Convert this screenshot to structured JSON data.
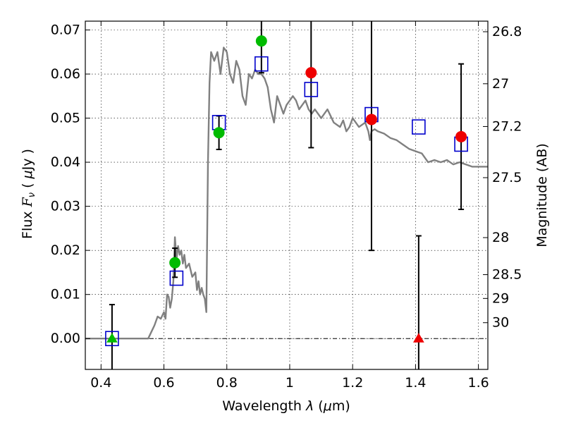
{
  "chart_data": {
    "type": "scatter",
    "xlabel": "Wavelength  λ (μm)",
    "ylabel": "Flux  F_ν  ( μJy )",
    "y2label": "Magnitude (AB)",
    "xlim": [
      0.35,
      1.63
    ],
    "ylim": [
      -0.007,
      0.072
    ],
    "xticks": [
      {
        "value": 0.4,
        "label": "0.4"
      },
      {
        "value": 0.6,
        "label": "0.6"
      },
      {
        "value": 0.8,
        "label": "0.8"
      },
      {
        "value": 1.0,
        "label": "1"
      },
      {
        "value": 1.2,
        "label": "1.2"
      },
      {
        "value": 1.4,
        "label": "1.4"
      },
      {
        "value": 1.6,
        "label": "1.6"
      }
    ],
    "yticks": [
      {
        "value": 0.0,
        "label": "0.00"
      },
      {
        "value": 0.01,
        "label": "0.01"
      },
      {
        "value": 0.02,
        "label": "0.02"
      },
      {
        "value": 0.03,
        "label": "0.03"
      },
      {
        "value": 0.04,
        "label": "0.04"
      },
      {
        "value": 0.05,
        "label": "0.05"
      },
      {
        "value": 0.06,
        "label": "0.06"
      },
      {
        "value": 0.07,
        "label": "0.07"
      }
    ],
    "mag_ticks": [
      {
        "label": "26.8",
        "flux": 0.0696
      },
      {
        "label": "27",
        "flux": 0.0578
      },
      {
        "label": "27.2",
        "flux": 0.0481
      },
      {
        "label": "27.5",
        "flux": 0.0365
      },
      {
        "label": "28",
        "flux": 0.0229
      },
      {
        "label": "28.5",
        "flux": 0.0145
      },
      {
        "label": "29",
        "flux": 0.0091
      },
      {
        "label": "30",
        "flux": 0.0036
      }
    ],
    "grid": true,
    "series": [
      {
        "kind": "line",
        "color": "#808080",
        "x": [
          0.35,
          0.45,
          0.5,
          0.55,
          0.57,
          0.58,
          0.59,
          0.6,
          0.605,
          0.61,
          0.615,
          0.62,
          0.625,
          0.63,
          0.635,
          0.64,
          0.645,
          0.65,
          0.655,
          0.66,
          0.665,
          0.67,
          0.68,
          0.69,
          0.7,
          0.705,
          0.71,
          0.715,
          0.72,
          0.725,
          0.73,
          0.735,
          0.74,
          0.745,
          0.75,
          0.76,
          0.77,
          0.78,
          0.79,
          0.8,
          0.81,
          0.82,
          0.83,
          0.84,
          0.85,
          0.86,
          0.87,
          0.88,
          0.89,
          0.9,
          0.91,
          0.92,
          0.93,
          0.94,
          0.95,
          0.96,
          0.97,
          0.98,
          0.99,
          1.0,
          1.01,
          1.02,
          1.03,
          1.04,
          1.05,
          1.06,
          1.07,
          1.08,
          1.09,
          1.1,
          1.12,
          1.14,
          1.16,
          1.17,
          1.18,
          1.19,
          1.2,
          1.22,
          1.24,
          1.25,
          1.255,
          1.26,
          1.27,
          1.28,
          1.3,
          1.32,
          1.34,
          1.36,
          1.38,
          1.4,
          1.42,
          1.44,
          1.46,
          1.48,
          1.5,
          1.52,
          1.54,
          1.56,
          1.58,
          1.6,
          1.63
        ],
        "y": [
          0.0,
          0.0,
          0.0,
          0.0,
          0.003,
          0.005,
          0.0045,
          0.006,
          0.0045,
          0.01,
          0.0095,
          0.007,
          0.009,
          0.013,
          0.023,
          0.018,
          0.021,
          0.019,
          0.02,
          0.017,
          0.019,
          0.016,
          0.017,
          0.014,
          0.015,
          0.011,
          0.013,
          0.01,
          0.0115,
          0.01,
          0.009,
          0.006,
          0.04,
          0.058,
          0.065,
          0.063,
          0.065,
          0.06,
          0.066,
          0.065,
          0.06,
          0.058,
          0.063,
          0.061,
          0.055,
          0.053,
          0.06,
          0.059,
          0.061,
          0.06,
          0.06,
          0.059,
          0.057,
          0.052,
          0.049,
          0.055,
          0.053,
          0.051,
          0.053,
          0.054,
          0.055,
          0.054,
          0.052,
          0.053,
          0.054,
          0.052,
          0.051,
          0.052,
          0.051,
          0.05,
          0.052,
          0.049,
          0.048,
          0.0495,
          0.047,
          0.048,
          0.05,
          0.048,
          0.049,
          0.047,
          0.045,
          0.047,
          0.0475,
          0.047,
          0.0465,
          0.0455,
          0.045,
          0.044,
          0.043,
          0.0425,
          0.042,
          0.04,
          0.0405,
          0.04,
          0.0405,
          0.0395,
          0.04,
          0.0395,
          0.039,
          0.039,
          0.039
        ]
      },
      {
        "kind": "marker",
        "marker": "square",
        "color": "#0000cc",
        "points": [
          {
            "x": 0.435,
            "y": 0.0
          },
          {
            "x": 0.64,
            "y": 0.0137
          },
          {
            "x": 0.775,
            "y": 0.049
          },
          {
            "x": 0.91,
            "y": 0.0623
          },
          {
            "x": 1.068,
            "y": 0.0565
          },
          {
            "x": 1.26,
            "y": 0.0508
          },
          {
            "x": 1.41,
            "y": 0.048
          },
          {
            "x": 1.545,
            "y": 0.0441
          }
        ]
      },
      {
        "kind": "marker",
        "marker": "circle",
        "color": "#00bb00",
        "points": [
          {
            "x": 0.635,
            "y": 0.0172,
            "err": 0.0033
          },
          {
            "x": 0.775,
            "y": 0.0467,
            "err": 0.0038
          },
          {
            "x": 0.91,
            "y": 0.0675,
            "err": 0.0072
          }
        ]
      },
      {
        "kind": "marker",
        "marker": "triangle",
        "color": "#00bb00",
        "points": [
          {
            "x": 0.435,
            "y": 0.0,
            "err": 0.0077
          }
        ]
      },
      {
        "kind": "marker",
        "marker": "circle",
        "color": "#ee0000",
        "points": [
          {
            "x": 1.068,
            "y": 0.0603,
            "err": 0.017
          },
          {
            "x": 1.26,
            "y": 0.0497,
            "err": 0.0297
          },
          {
            "x": 1.545,
            "y": 0.0458,
            "err": 0.0165
          }
        ]
      },
      {
        "kind": "marker",
        "marker": "triangle",
        "color": "#ee0000",
        "points": [
          {
            "x": 1.41,
            "y": 0.0,
            "err": 0.0233
          }
        ]
      }
    ]
  }
}
